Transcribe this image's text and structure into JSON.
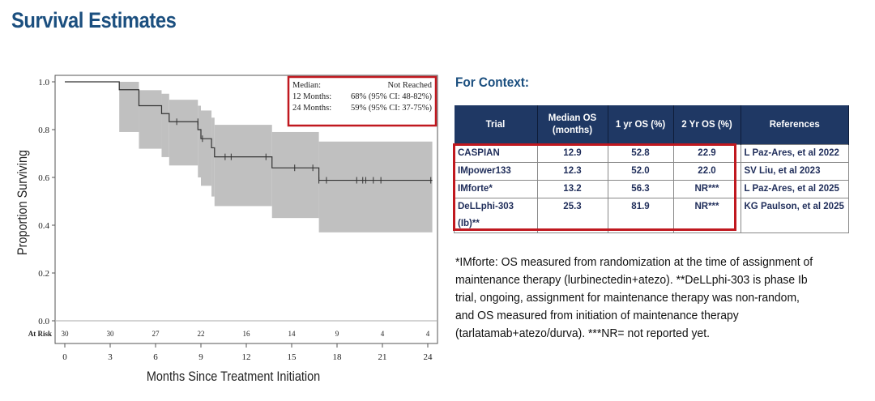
{
  "title": "Survival Estimates",
  "chart_data": {
    "type": "line",
    "subtype": "kaplan-meier step with 95% CI band",
    "xlabel": "Months Since Treatment Initiation",
    "ylabel": "Proportion Surviving",
    "xlim": [
      0,
      24
    ],
    "ylim": [
      0,
      1
    ],
    "xticks": [
      0,
      3,
      6,
      9,
      12,
      15,
      18,
      21,
      24
    ],
    "yticks": [
      "0.0",
      "0.2",
      "0.4",
      "0.6",
      "0.8",
      "1.0"
    ],
    "grid": false,
    "steps": [
      [
        0,
        1.0
      ],
      [
        3.6,
        0.967
      ],
      [
        4.9,
        0.9
      ],
      [
        6.4,
        0.867
      ],
      [
        6.9,
        0.833
      ],
      [
        8.8,
        0.8
      ],
      [
        9.0,
        0.762
      ],
      [
        9.7,
        0.724
      ],
      [
        9.9,
        0.686
      ],
      [
        13.7,
        0.64
      ],
      [
        16.8,
        0.588
      ]
    ],
    "end_x": 24.3,
    "ci": [
      [
        3.6,
        1.0,
        0.79
      ],
      [
        4.9,
        0.965,
        0.72
      ],
      [
        6.4,
        0.95,
        0.685
      ],
      [
        6.9,
        0.925,
        0.65
      ],
      [
        8.8,
        0.9,
        0.6
      ],
      [
        9.0,
        0.88,
        0.565
      ],
      [
        9.7,
        0.85,
        0.52
      ],
      [
        9.9,
        0.82,
        0.48
      ],
      [
        13.7,
        0.79,
        0.43
      ],
      [
        16.8,
        0.75,
        0.37
      ]
    ],
    "censored": [
      [
        7.4,
        0.833
      ],
      [
        8.8,
        0.833
      ],
      [
        9.1,
        0.762
      ],
      [
        10.6,
        0.686
      ],
      [
        11.0,
        0.686
      ],
      [
        13.3,
        0.686
      ],
      [
        15.2,
        0.64
      ],
      [
        16.4,
        0.64
      ],
      [
        16.8,
        0.588
      ],
      [
        17.3,
        0.588
      ],
      [
        19.3,
        0.588
      ],
      [
        19.7,
        0.588
      ],
      [
        19.9,
        0.588
      ],
      [
        20.4,
        0.588
      ],
      [
        20.9,
        0.588
      ],
      [
        24.2,
        0.588
      ]
    ],
    "at_risk_label": "At Risk",
    "at_risk": [
      30,
      30,
      27,
      22,
      16,
      14,
      9,
      4,
      4
    ],
    "annotation": {
      "rows": [
        [
          "Median:",
          "Not Reached"
        ],
        [
          "12 Months:",
          "68% (95% CI: 48-82%)"
        ],
        [
          "24 Months:",
          "59% (95% CI: 37-75%)"
        ]
      ]
    },
    "colors": {
      "line": "#333333",
      "band": "#c0c0c0",
      "highlight": "#c0181f"
    }
  },
  "context": {
    "title": "For Context:",
    "headers": [
      "Trial",
      "Median OS (months)",
      "1 yr OS (%)",
      "2 Yr OS (%)",
      "References"
    ],
    "rows": [
      [
        "CASPIAN",
        "12.9",
        "52.8",
        "22.9",
        "L Paz-Ares, et al 2022"
      ],
      [
        "IMpower133",
        "12.3",
        "52.0",
        "22.0",
        "SV Liu, et al 2023"
      ],
      [
        "IMforte*",
        "13.2",
        "56.3",
        "NR***",
        "L Paz-Ares, et al 2025"
      ],
      [
        "DeLLphi-303 (Ib)**",
        "25.3",
        "81.9",
        "NR***",
        "KG Paulson, et al 2025"
      ]
    ],
    "header_color": "#1f3864"
  },
  "footnote": "*IMforte: OS measured from randomization at the time of assignment of maintenance therapy (lurbinectedin+atezo). **DeLLphi-303 is phase Ib trial, ongoing, assignment for maintenance therapy was non-random, and OS measured from initiation of maintenance therapy (tarlatamab+atezo/durva). ***NR= not reported yet."
}
